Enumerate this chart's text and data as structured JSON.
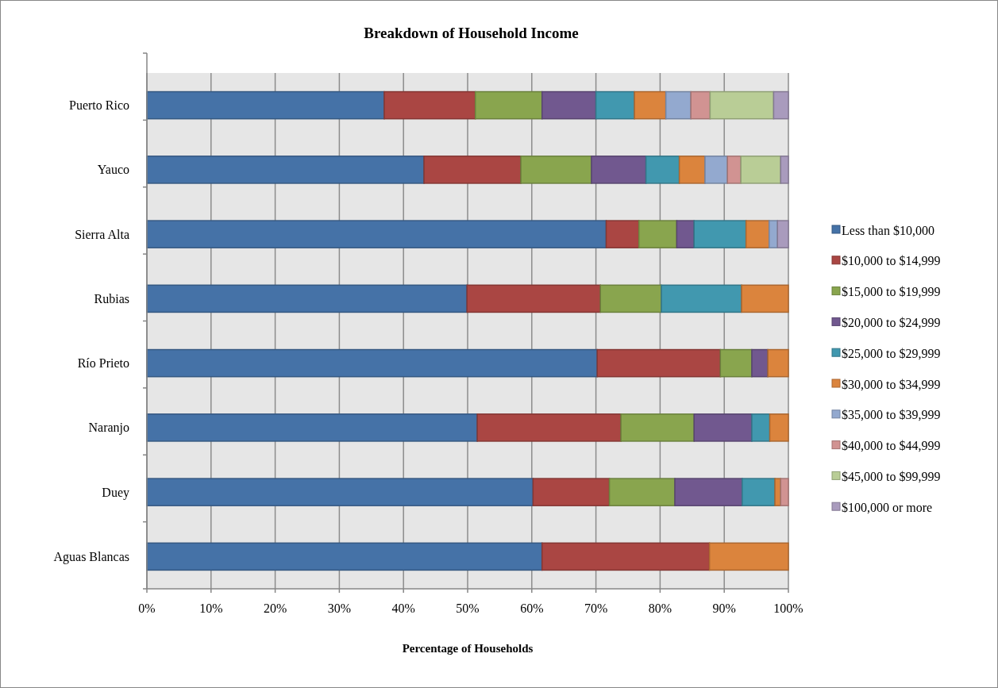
{
  "chart_data": {
    "type": "bar",
    "orientation": "horizontal",
    "stacked": true,
    "title": "Breakdown of Household Income",
    "xlabel": "Percentage of Households",
    "categories": [
      "Puerto Rico",
      "Yauco",
      "Sierra Alta",
      "Rubias",
      "Río Prieto",
      "Naranjo",
      "Duey",
      "Aguas Blancas"
    ],
    "series": [
      {
        "name": "Less than $10,000",
        "color": "#4572a7",
        "values": [
          37.0,
          43.2,
          71.6,
          49.9,
          70.2,
          51.5,
          60.2,
          61.6
        ]
      },
      {
        "name": "$10,000 to $14,999",
        "color": "#aa4643",
        "values": [
          14.2,
          15.1,
          5.1,
          20.8,
          19.2,
          22.4,
          11.9,
          26.1
        ]
      },
      {
        "name": "$15,000 to $19,999",
        "color": "#89a54e",
        "values": [
          10.4,
          11.0,
          5.9,
          9.5,
          4.9,
          11.4,
          10.2,
          0
        ]
      },
      {
        "name": "$20,000 to $24,999",
        "color": "#71588f",
        "values": [
          8.4,
          8.5,
          2.7,
          0,
          2.5,
          9.0,
          10.5,
          0
        ]
      },
      {
        "name": "$25,000 to $29,999",
        "color": "#4198af",
        "values": [
          6.0,
          5.2,
          8.1,
          12.5,
          0,
          2.8,
          5.1,
          0
        ]
      },
      {
        "name": "$30,000 to $34,999",
        "color": "#db843d",
        "values": [
          4.9,
          4.0,
          3.6,
          7.3,
          3.2,
          2.9,
          0.9,
          12.3
        ]
      },
      {
        "name": "$35,000 to $39,999",
        "color": "#93a9cf",
        "values": [
          3.9,
          3.5,
          1.3,
          0,
          0,
          0,
          0,
          0
        ]
      },
      {
        "name": "$40,000 to $44,999",
        "color": "#d19392",
        "values": [
          3.0,
          2.1,
          0,
          0,
          0,
          0,
          1.2,
          0
        ]
      },
      {
        "name": "$45,000 to $99,999",
        "color": "#b9cd96",
        "values": [
          9.9,
          6.2,
          0,
          0,
          0,
          0,
          0,
          0
        ]
      },
      {
        "name": "$100,000 or more",
        "color": "#a99bbd",
        "values": [
          2.3,
          1.2,
          1.7,
          0,
          0,
          0,
          0,
          0
        ]
      }
    ],
    "xlim": [
      0,
      100
    ],
    "xticks": [
      {
        "value": 0,
        "label": "0%"
      },
      {
        "value": 10,
        "label": "10%"
      },
      {
        "value": 20,
        "label": "20%"
      },
      {
        "value": 30,
        "label": "30%"
      },
      {
        "value": 40,
        "label": "40%"
      },
      {
        "value": 50,
        "label": "50%"
      },
      {
        "value": 60,
        "label": "60%"
      },
      {
        "value": 70,
        "label": "70%"
      },
      {
        "value": 80,
        "label": "80%"
      },
      {
        "value": 90,
        "label": "90%"
      },
      {
        "value": 100,
        "label": "100%"
      }
    ],
    "grid": "x",
    "legend": "right"
  }
}
